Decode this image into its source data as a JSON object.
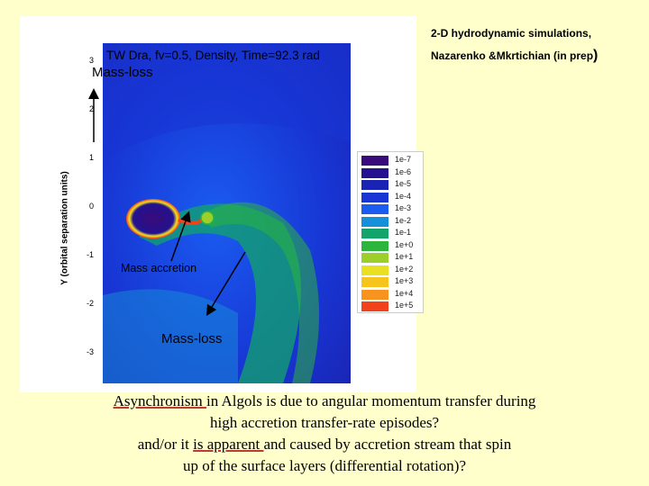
{
  "figure": {
    "sim_title": "TW Dra,  fv=0.5,  Density, Time=92.3 rad",
    "ylabel": "Y  (orbital separation units)",
    "yticks": [
      "3",
      "2",
      "1",
      "0",
      "-1",
      "-2",
      "-3"
    ],
    "legend": [
      {
        "label": "1e-7",
        "color": "#3a0b7a"
      },
      {
        "label": "1e-6",
        "color": "#23128f"
      },
      {
        "label": "1e-5",
        "color": "#1a24b4"
      },
      {
        "label": "1e-4",
        "color": "#1836d4"
      },
      {
        "label": "1e-3",
        "color": "#1a5cf0"
      },
      {
        "label": "1e-2",
        "color": "#1690d8"
      },
      {
        "label": "1e-1",
        "color": "#12a46a"
      },
      {
        "label": "1e+0",
        "color": "#2cb43c"
      },
      {
        "label": "1e+1",
        "color": "#9ccf2a"
      },
      {
        "label": "1e+2",
        "color": "#e8e020"
      },
      {
        "label": "1e+3",
        "color": "#f6c41a"
      },
      {
        "label": "1e+4",
        "color": "#f7931e"
      },
      {
        "label": "1e+5",
        "color": "#f2421c"
      }
    ],
    "annotations": {
      "mass_loss_top": "Mass-loss",
      "mass_accretion": "Mass accretion",
      "mass_loss_bottom": "Mass-loss"
    }
  },
  "credit": {
    "line1": "2-D hydrodynamic simulations,",
    "line2": "Nazarenko &Mkrtichian (in prep",
    "paren": ")"
  },
  "caption": {
    "line1_u": "Asynchronism ",
    "line1_rest": "in Algols  is due to angular momentum transfer during",
    "line2": "high accretion transfer-rate episodes?",
    "line3_pre": "and/or it ",
    "line3_u": "is apparent ",
    "line3_rest": " and caused  by accretion stream  that spin",
    "line4": "up of the surface layers (differential rotation)?"
  }
}
